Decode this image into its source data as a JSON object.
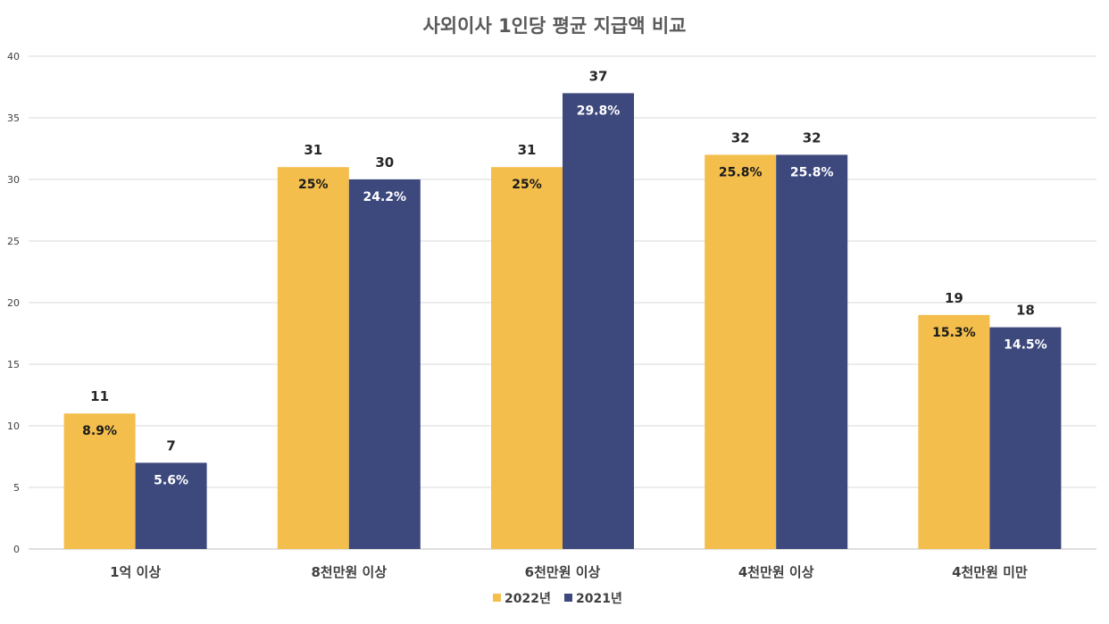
{
  "chart_data": {
    "type": "bar",
    "title": "사외이사 1인당 평균 지급액 비교",
    "categories": [
      "1억 이상",
      "8천만원 이상",
      "6천만원 이상",
      "4천만원 이상",
      "4천만원 미만"
    ],
    "series": [
      {
        "name": "2022년",
        "color": "#F4BE4C",
        "values": [
          11,
          31,
          31,
          32,
          19
        ],
        "labels": [
          "8.9%",
          "25%",
          "25%",
          "25.8%",
          "15.3%"
        ]
      },
      {
        "name": "2021년",
        "color": "#3D487D",
        "values": [
          7,
          30,
          37,
          32,
          18
        ],
        "labels": [
          "5.6%",
          "24.2%",
          "29.8%",
          "25.8%",
          "14.5%"
        ]
      }
    ],
    "ylim": [
      0,
      40
    ],
    "yticks": [
      0,
      5,
      10,
      15,
      20,
      25,
      30,
      35,
      40
    ],
    "grid": true,
    "legend": "bottom",
    "xlabel": "",
    "ylabel": ""
  }
}
